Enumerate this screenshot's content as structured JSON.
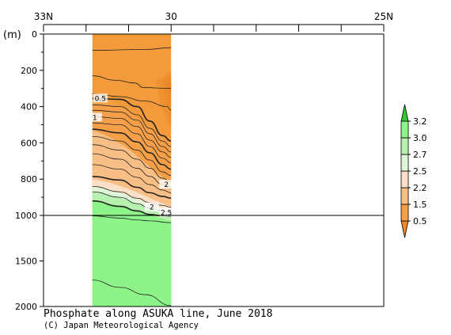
{
  "chart_data": {
    "type": "heatmap",
    "title": "Phosphate along ASUKA line, June 2018",
    "credit": "(C) Japan Meteorological Agency",
    "xlabel": "",
    "ylabel": "(m)",
    "x_ticks": [
      {
        "label": "33N",
        "lat": 33
      },
      {
        "label": "30",
        "lat": 30
      },
      {
        "label": "25N",
        "lat": 25
      }
    ],
    "x_minor_ticks_lat": [
      32,
      31,
      29,
      28,
      27,
      26
    ],
    "xlim_lat": [
      33,
      25
    ],
    "data_lat_range": [
      31.85,
      30.0
    ],
    "y_ticks": [
      0,
      200,
      400,
      600,
      800,
      1000,
      1500,
      2000
    ],
    "y_tick_labels": [
      "0",
      "200",
      "400",
      "600",
      "800",
      "1000",
      "1500",
      "2000"
    ],
    "y_scale": "piecewise: 0-1000 m upper panel, 1000-2000 m compressed lower panel",
    "ylim": [
      0,
      2000
    ],
    "colorbar": {
      "labels": [
        "3.2",
        "3.0",
        "2.7",
        "2.5",
        "2.2",
        "1.5",
        "0.5"
      ],
      "bins": [
        {
          "range": "<0.5",
          "color": "#f08a2a"
        },
        {
          "range": "0.5-1.5",
          "color": "#f5a048"
        },
        {
          "range": "1.5-2.2",
          "color": "#f7bf85"
        },
        {
          "range": "2.2-2.5",
          "color": "#fbe0c8"
        },
        {
          "range": "2.5-2.7",
          "color": "#dff5d8"
        },
        {
          "range": "2.7-3.0",
          "color": "#b6f1b0"
        },
        {
          "range": "3.0-3.2",
          "color": "#8ef489"
        },
        {
          "range": ">3.2",
          "color": "#33c833"
        }
      ]
    },
    "contour_labels": [
      "0.5",
      "1",
      "2",
      "2.5"
    ],
    "fill_layers": [
      {
        "name": "lt-0.5",
        "color": "#f39a3a",
        "depth_north": 0,
        "depth_south": 0
      },
      {
        "name": "0.5-1.5",
        "color": "#f5a048",
        "depth_north": 330,
        "depth_south": 600
      },
      {
        "name": "1.5-2.2",
        "color": "#f7bf85",
        "depth_north": 530,
        "depth_south": 820
      },
      {
        "name": "2.2-2.5",
        "color": "#fbe0c8",
        "depth_north": 800,
        "depth_south": 950
      },
      {
        "name": "2.5-2.7",
        "color": "#dff5d8",
        "depth_north": 840,
        "depth_south": 985
      },
      {
        "name": "2.7-3.0",
        "color": "#b6f1b0",
        "depth_north": 870,
        "depth_south": 1010
      },
      {
        "name": "3.0-3.2",
        "color": "#8ef489",
        "depth_north": 920,
        "depth_south": 1060
      }
    ],
    "contours": [
      [
        [
          31.85,
          90
        ],
        [
          30.6,
          85
        ],
        [
          30.0,
          75
        ]
      ],
      [
        [
          31.85,
          230
        ],
        [
          31.3,
          255
        ],
        [
          30.85,
          270
        ],
        [
          30.65,
          295
        ],
        [
          30.0,
          300
        ]
      ],
      [
        [
          31.85,
          330
        ],
        [
          31.2,
          345
        ],
        [
          30.6,
          370
        ],
        [
          30.1,
          400
        ],
        [
          30.0,
          420
        ]
      ],
      [
        [
          31.85,
          355
        ],
        [
          31.2,
          360
        ],
        [
          30.8,
          400
        ],
        [
          30.5,
          480
        ],
        [
          30.2,
          560
        ],
        [
          30.0,
          590
        ]
      ],
      [
        [
          31.85,
          390
        ],
        [
          31.2,
          400
        ],
        [
          30.8,
          445
        ],
        [
          30.5,
          520
        ],
        [
          30.2,
          590
        ],
        [
          30.0,
          620
        ]
      ],
      [
        [
          31.85,
          420
        ],
        [
          31.2,
          430
        ],
        [
          30.8,
          475
        ],
        [
          30.5,
          550
        ],
        [
          30.2,
          620
        ],
        [
          30.0,
          650
        ]
      ],
      [
        [
          31.85,
          455
        ],
        [
          31.2,
          465
        ],
        [
          30.8,
          510
        ],
        [
          30.5,
          585
        ],
        [
          30.2,
          650
        ],
        [
          30.0,
          680
        ]
      ],
      [
        [
          31.85,
          490
        ],
        [
          31.2,
          500
        ],
        [
          30.8,
          550
        ],
        [
          30.5,
          620
        ],
        [
          30.2,
          685
        ],
        [
          30.0,
          710
        ]
      ],
      [
        [
          31.85,
          525
        ],
        [
          31.2,
          545
        ],
        [
          30.8,
          595
        ],
        [
          30.5,
          655
        ],
        [
          30.2,
          720
        ],
        [
          30.0,
          745
        ]
      ],
      [
        [
          31.85,
          565
        ],
        [
          31.2,
          590
        ],
        [
          30.8,
          640
        ],
        [
          30.5,
          695
        ],
        [
          30.2,
          760
        ],
        [
          30.0,
          780
        ]
      ],
      [
        [
          31.85,
          610
        ],
        [
          31.2,
          640
        ],
        [
          30.8,
          690
        ],
        [
          30.5,
          740
        ],
        [
          30.2,
          795
        ],
        [
          30.0,
          815
        ]
      ],
      [
        [
          31.85,
          660
        ],
        [
          31.2,
          690
        ],
        [
          30.8,
          740
        ],
        [
          30.5,
          785
        ],
        [
          30.2,
          830
        ],
        [
          30.0,
          845
        ]
      ],
      [
        [
          31.85,
          720
        ],
        [
          31.2,
          745
        ],
        [
          30.8,
          790
        ],
        [
          30.5,
          830
        ],
        [
          30.2,
          860
        ],
        [
          30.0,
          875
        ]
      ],
      [
        [
          31.85,
          785
        ],
        [
          31.2,
          805
        ],
        [
          30.8,
          845
        ],
        [
          30.5,
          875
        ],
        [
          30.2,
          895
        ],
        [
          30.0,
          905
        ]
      ],
      [
        [
          31.85,
          840
        ],
        [
          31.2,
          870
        ],
        [
          30.8,
          905
        ],
        [
          30.5,
          930
        ],
        [
          30.2,
          945
        ],
        [
          30.0,
          955
        ]
      ],
      [
        [
          31.85,
          870
        ],
        [
          31.2,
          900
        ],
        [
          30.8,
          935
        ],
        [
          30.5,
          960
        ],
        [
          30.2,
          975
        ],
        [
          30.0,
          985
        ]
      ],
      [
        [
          31.85,
          920
        ],
        [
          31.2,
          950
        ],
        [
          30.8,
          975
        ],
        [
          30.5,
          995
        ],
        [
          30.2,
          1005
        ],
        [
          30.0,
          1010
        ]
      ],
      [
        [
          31.85,
          1005
        ],
        [
          31.2,
          1030
        ],
        [
          30.8,
          1050
        ],
        [
          30.5,
          1060
        ],
        [
          30.0,
          1080
        ]
      ],
      [
        [
          31.85,
          1710
        ],
        [
          31.2,
          1790
        ],
        [
          30.6,
          1870
        ],
        [
          30.0,
          1990
        ]
      ]
    ],
    "gradient_bands": [
      [
        [
          30.1,
          210
        ],
        [
          30.05,
          330
        ],
        [
          30.0,
          420
        ]
      ],
      [
        [
          30.2,
          230
        ],
        [
          30.12,
          380
        ],
        [
          30.0,
          470
        ]
      ],
      [
        [
          30.35,
          250
        ],
        [
          30.25,
          400
        ],
        [
          30.0,
          520
        ]
      ]
    ]
  }
}
